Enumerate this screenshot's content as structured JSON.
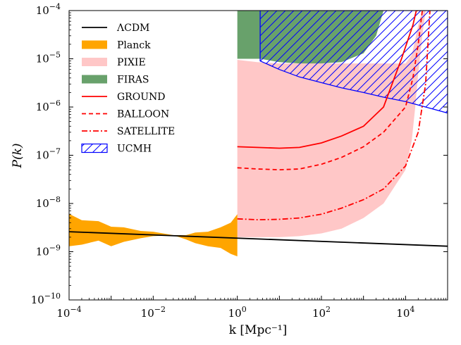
{
  "chart_data": {
    "type": "line",
    "title": "",
    "xlabel": "k [Mpc⁻¹]",
    "ylabel": "P(k)",
    "xscale": "log",
    "yscale": "log",
    "xlim": [
      0.0001,
      100000
    ],
    "ylim": [
      1e-10,
      0.0001
    ],
    "x_ticks": [
      {
        "base": "10",
        "exp": "−4",
        "value": 0.0001
      },
      {
        "base": "10",
        "exp": "−2",
        "value": 0.01
      },
      {
        "base": "10",
        "exp": "0",
        "value": 1
      },
      {
        "base": "10",
        "exp": "2",
        "value": 100
      },
      {
        "base": "10",
        "exp": "4",
        "value": 10000
      }
    ],
    "y_ticks": [
      {
        "base": "10",
        "exp": "−10",
        "value": 1e-10
      },
      {
        "base": "10",
        "exp": "−9",
        "value": 1e-09
      },
      {
        "base": "10",
        "exp": "−8",
        "value": 1e-08
      },
      {
        "base": "10",
        "exp": "−7",
        "value": 1e-07
      },
      {
        "base": "10",
        "exp": "−6",
        "value": 1e-06
      },
      {
        "base": "10",
        "exp": "−5",
        "value": 1e-05
      },
      {
        "base": "10",
        "exp": "−4",
        "value": 0.0001
      }
    ],
    "legend_position": "top-left",
    "series": [
      {
        "key": "lcdm",
        "name": "ΛCDM",
        "kind": "line",
        "color": "#000000",
        "dash": "solid",
        "x": [
          0.0001,
          100000
        ],
        "y": [
          2.6e-09,
          1.3e-09
        ]
      },
      {
        "key": "planck",
        "name": "Planck",
        "kind": "band",
        "color": "#ffa500",
        "opacity": 1,
        "x": [
          0.0001,
          0.0002,
          0.0005,
          0.001,
          0.002,
          0.005,
          0.01,
          0.03,
          0.06,
          0.1,
          0.2,
          0.4,
          0.7,
          1
        ],
        "upper": [
          6.1e-09,
          4.5e-09,
          4.3e-09,
          3.3e-09,
          3.2e-09,
          2.7e-09,
          2.6e-09,
          2.2e-09,
          2.2e-09,
          2.5e-09,
          2.6e-09,
          3.2e-09,
          4e-09,
          6e-09
        ],
        "lower": [
          1.3e-09,
          1.4e-09,
          1.7e-09,
          1.3e-09,
          1.6e-09,
          1.9e-09,
          2.1e-09,
          2.2e-09,
          1.8e-09,
          1.5e-09,
          1.3e-09,
          1.2e-09,
          9e-10,
          8e-10
        ]
      },
      {
        "key": "pixie",
        "name": "PIXIE",
        "kind": "band",
        "color": "#ff9999",
        "opacity": 0.55,
        "x": [
          1,
          3,
          10,
          30,
          100,
          300,
          1000,
          3000,
          10000,
          14000,
          17000,
          20000,
          25000,
          30000
        ],
        "upper": [
          9.5e-06,
          8.5e-06,
          8e-06,
          8e-06,
          8e-06,
          8e-06,
          8e-06,
          8e-06,
          8e-06,
          1.2e-05,
          2.5e-05,
          5e-05,
          0.0001,
          0.0001
        ],
        "lower": [
          2e-09,
          2e-09,
          2e-09,
          2.1e-09,
          2.4e-09,
          3e-09,
          5e-09,
          1e-08,
          5e-08,
          2e-07,
          1e-06,
          5e-06,
          3e-05,
          0.0001
        ]
      },
      {
        "key": "firas",
        "name": "FIRAS",
        "kind": "band",
        "color": "#2e7d32",
        "opacity": 0.72,
        "x": [
          1,
          3.5,
          10,
          30,
          100,
          300,
          1000,
          2000,
          3000
        ],
        "upper": [
          0.0001,
          0.0001,
          0.0001,
          0.0001,
          0.0001,
          0.0001,
          0.0001,
          0.0001,
          0.0001
        ],
        "lower": [
          1e-05,
          1e-05,
          8.5e-06,
          8e-06,
          8e-06,
          8.5e-06,
          1.3e-05,
          3e-05,
          0.0001
        ]
      },
      {
        "key": "ground",
        "name": "GROUND",
        "kind": "line",
        "color": "#ff0000",
        "dash": "solid",
        "x": [
          1,
          3,
          10,
          30,
          100,
          300,
          1000,
          3000,
          8000,
          15000,
          18000,
          20000
        ],
        "y": [
          1.5e-07,
          1.45e-07,
          1.4e-07,
          1.45e-07,
          1.8e-07,
          2.5e-07,
          4e-07,
          1e-06,
          1e-05,
          5e-05,
          0.0001,
          0.0001
        ]
      },
      {
        "key": "balloon",
        "name": "BALLOON",
        "kind": "line",
        "color": "#ff0000",
        "dash": "6,4",
        "x": [
          1,
          3,
          10,
          30,
          100,
          300,
          1000,
          3000,
          10000,
          15000,
          20000,
          25000
        ],
        "y": [
          5.5e-08,
          5.2e-08,
          5e-08,
          5.2e-08,
          6.5e-08,
          9e-08,
          1.5e-07,
          3e-07,
          1e-06,
          4e-06,
          2e-05,
          0.0001
        ]
      },
      {
        "key": "satellite",
        "name": "SATELLITE",
        "kind": "line",
        "color": "#ff0000",
        "dash": "8,3,2,3",
        "x": [
          1,
          3,
          10,
          30,
          100,
          300,
          1000,
          3000,
          10000,
          20000,
          30000,
          35000,
          38000
        ],
        "y": [
          4.8e-09,
          4.6e-09,
          4.7e-09,
          5e-09,
          6e-09,
          8e-09,
          1.2e-08,
          2e-08,
          6e-08,
          3e-07,
          3e-06,
          3e-05,
          0.0001
        ]
      },
      {
        "key": "ucmh",
        "name": "UCMH",
        "kind": "hatch",
        "color": "#0000ff",
        "x": [
          3.5,
          10,
          30,
          100,
          300,
          1000,
          3000,
          10000,
          30000,
          100000
        ],
        "upper": [
          0.0001,
          0.0001,
          0.0001,
          0.0001,
          0.0001,
          0.0001,
          0.0001,
          0.0001,
          0.0001,
          0.0001
        ],
        "lower": [
          9e-06,
          6e-06,
          4.2e-06,
          3.2e-06,
          2.5e-06,
          2e-06,
          1.6e-06,
          1.3e-06,
          1e-06,
          7.5e-07
        ]
      }
    ]
  }
}
